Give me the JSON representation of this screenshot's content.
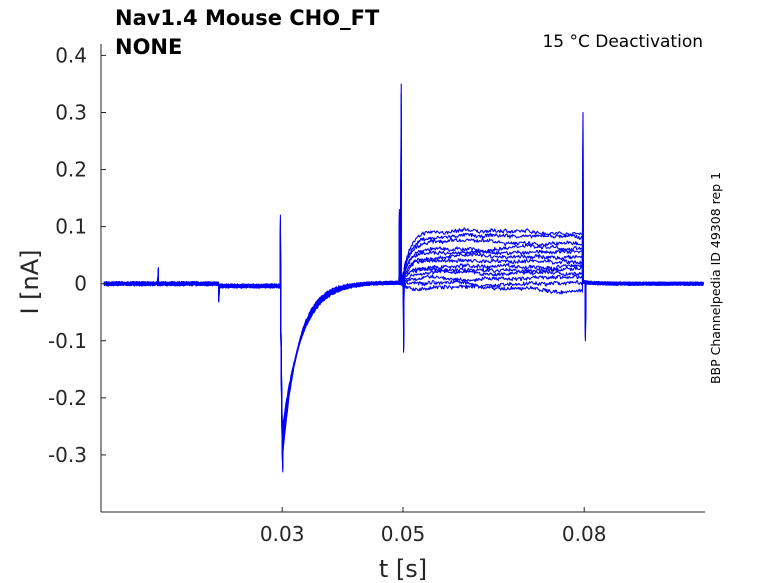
{
  "chart_data": {
    "type": "line",
    "title_line1": "Nav1.4  Mouse  CHO_FT",
    "title_line2": "NONE",
    "annotation": "15 °C  Deactivation",
    "side_label": "BBP Channelpedia ID 49308 rep 1",
    "xlabel": "t [s]",
    "ylabel": "I [nA]",
    "xlim": [
      0.0,
      0.1
    ],
    "ylim": [
      -0.4,
      0.42
    ],
    "x_ticks": [
      0.03,
      0.05,
      0.08
    ],
    "x_tick_labels": [
      "0.03",
      "0.05",
      "0.08"
    ],
    "y_ticks": [
      0.4,
      0.3,
      0.2,
      0.1,
      0,
      -0.1,
      -0.2,
      -0.3
    ],
    "y_tick_labels": [
      "0.4",
      "0.3",
      "0.2",
      "0.1",
      "0",
      "-0.1",
      "-0.2",
      "-0.3"
    ],
    "line_color": "#0000ff",
    "series": [
      {
        "plateau": 0.09
      },
      {
        "plateau": 0.08
      },
      {
        "plateau": 0.07
      },
      {
        "plateau": 0.062
      },
      {
        "plateau": 0.055
      },
      {
        "plateau": 0.048
      },
      {
        "plateau": 0.04
      },
      {
        "plateau": 0.032
      },
      {
        "plateau": 0.025
      },
      {
        "plateau": 0.018
      },
      {
        "plateau": 0.01
      },
      {
        "plateau": 0.002
      },
      {
        "plateau": -0.008
      }
    ],
    "events": {
      "artifact_small_1": {
        "t": 0.0095,
        "peak": 0.028
      },
      "artifact_small_2": {
        "t": 0.0195,
        "peak": -0.032
      },
      "step1": {
        "t": 0.0297,
        "spike_up": 0.12,
        "spike_down": -0.33
      },
      "step2": {
        "t": 0.0497,
        "spike_up": 0.35,
        "spike_down": -0.12
      },
      "step3": {
        "t": 0.0798,
        "spike_up": 0.3,
        "spike_down": -0.1
      }
    }
  }
}
